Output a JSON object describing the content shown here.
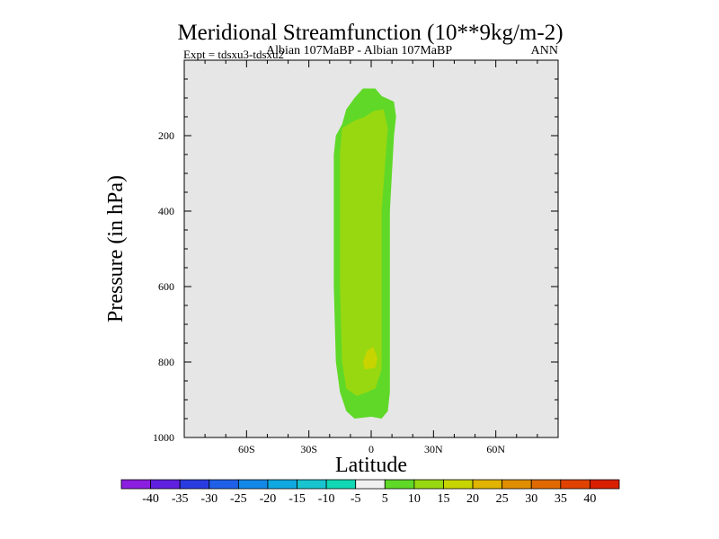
{
  "chart_data": {
    "type": "heatmap",
    "title": "Meridional Streamfunction (10**9kg/m-2)",
    "subtitle_left": "Albian   107MaBP - Albian   107MaBP",
    "subtitle_right": "ANN",
    "expt_label": "Expt = tdsxu3-tdsxu2",
    "xlabel": "Latitude",
    "ylabel": "Pressure (in hPa)",
    "xlim": [
      -90,
      90
    ],
    "ylim": [
      1000,
      0
    ],
    "x_ticks": [
      -60,
      -30,
      0,
      30,
      60
    ],
    "x_tick_labels": [
      "60S",
      "30S",
      "0",
      "30N",
      "60N"
    ],
    "y_ticks": [
      200,
      400,
      600,
      800,
      1000
    ],
    "y_tick_labels": [
      "200",
      "400",
      "600",
      "800",
      "1000"
    ],
    "background_color": "#e6e6e6",
    "colorbar": {
      "levels": [
        "-40",
        "-35",
        "-30",
        "-25",
        "-20",
        "-15",
        "-10",
        "-5",
        "5",
        "10",
        "15",
        "20",
        "25",
        "30",
        "35",
        "40"
      ],
      "colors": [
        "#8c1ee0",
        "#6020e0",
        "#2a3ce0",
        "#2060e8",
        "#1488e6",
        "#10a8e0",
        "#18c4d0",
        "#10d8b4",
        "#f0f0f0",
        "#60d828",
        "#98d810",
        "#c8d400",
        "#e0b400",
        "#e08e00",
        "#e06a00",
        "#e04200",
        "#d82000"
      ]
    },
    "regions": [
      {
        "label": "5 to 10",
        "color": "#60d828",
        "outline": [
          [
            -4,
            75
          ],
          [
            -8,
            100
          ],
          [
            -12,
            130
          ],
          [
            -14,
            170
          ],
          [
            -17,
            200
          ],
          [
            -18,
            250
          ],
          [
            -18,
            400
          ],
          [
            -18,
            600
          ],
          [
            -17,
            800
          ],
          [
            -15,
            880
          ],
          [
            -12,
            930
          ],
          [
            -8,
            950
          ],
          [
            0,
            945
          ],
          [
            5,
            950
          ],
          [
            8,
            930
          ],
          [
            9,
            880
          ],
          [
            9,
            800
          ],
          [
            9,
            600
          ],
          [
            9,
            400
          ],
          [
            10,
            300
          ],
          [
            11,
            200
          ],
          [
            12,
            150
          ],
          [
            11,
            110
          ],
          [
            5,
            95
          ],
          [
            2,
            75
          ]
        ]
      },
      {
        "label": "10 to 15",
        "color": "#98d810",
        "outline": [
          [
            -8,
            160
          ],
          [
            -14,
            180
          ],
          [
            -15,
            250
          ],
          [
            -15,
            400
          ],
          [
            -15,
            600
          ],
          [
            -14,
            800
          ],
          [
            -12,
            870
          ],
          [
            -7,
            890
          ],
          [
            -2,
            880
          ],
          [
            2,
            870
          ],
          [
            5,
            820
          ],
          [
            5,
            600
          ],
          [
            5,
            400
          ],
          [
            7,
            250
          ],
          [
            8,
            180
          ],
          [
            6,
            130
          ],
          [
            1,
            135
          ],
          [
            -3,
            150
          ]
        ]
      },
      {
        "label": "15 to 20",
        "color": "#c8d400",
        "outline": [
          [
            -2,
            770
          ],
          [
            -4,
            800
          ],
          [
            -3,
            820
          ],
          [
            2,
            815
          ],
          [
            3,
            790
          ],
          [
            1,
            760
          ]
        ]
      }
    ]
  }
}
